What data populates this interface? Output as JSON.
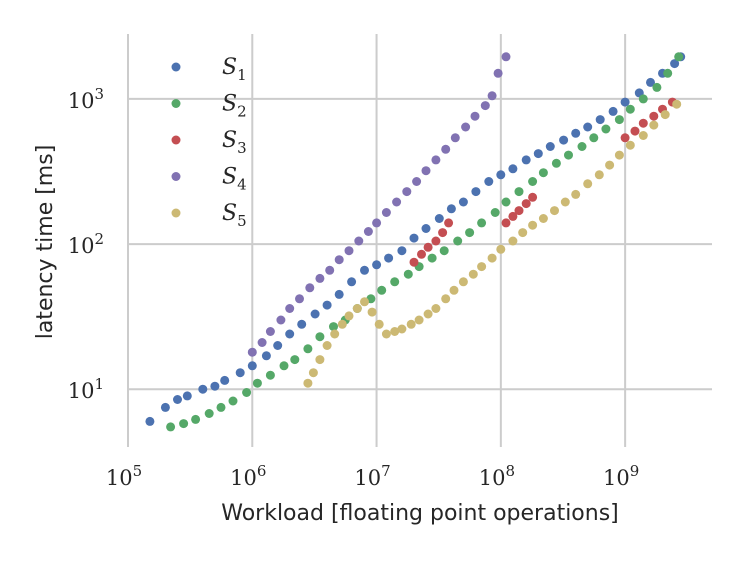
{
  "chart_data": {
    "type": "scatter",
    "title": "",
    "xlabel": "Workload [floating point operations]",
    "ylabel": "latency time [ms]",
    "xscale": "log",
    "yscale": "log",
    "xlim": [
      100000,
      5000000000
    ],
    "ylim": [
      4,
      2800
    ],
    "grid": true,
    "legend_position": "top-left",
    "x_ticks": [
      {
        "base": "10",
        "exp": "5",
        "value": 100000
      },
      {
        "base": "10",
        "exp": "6",
        "value": 1000000
      },
      {
        "base": "10",
        "exp": "7",
        "value": 10000000
      },
      {
        "base": "10",
        "exp": "8",
        "value": 100000000
      },
      {
        "base": "10",
        "exp": "9",
        "value": 1000000000
      }
    ],
    "y_ticks": [
      {
        "base": "10",
        "exp": "1",
        "value": 10
      },
      {
        "base": "10",
        "exp": "2",
        "value": 100
      },
      {
        "base": "10",
        "exp": "3",
        "value": 1000
      }
    ],
    "series": [
      {
        "name": "S1",
        "label_main": "S",
        "label_sub": "1",
        "color": "#4c72b0",
        "x": [
          150000,
          200000,
          250000,
          300000,
          400000,
          500000,
          600000,
          800000,
          1000000,
          1300000,
          1600000,
          2000000,
          2500000,
          3200000,
          4000000,
          5000000,
          6300000,
          8000000,
          10000000,
          12500000,
          16000000,
          20000000,
          25000000,
          32000000,
          40000000,
          50000000,
          63000000,
          80000000,
          100000000,
          125000000,
          160000000,
          200000000,
          250000000,
          320000000,
          400000000,
          500000000,
          630000000,
          800000000,
          1000000000,
          1300000000,
          1600000000,
          2000000000,
          2500000000,
          2800000000
        ],
        "y": [
          6,
          7.5,
          8.5,
          9,
          10,
          10.5,
          11.5,
          13,
          14.5,
          17,
          20,
          24,
          28,
          33,
          38,
          45,
          55,
          66,
          72,
          80,
          90,
          110,
          128,
          150,
          175,
          195,
          230,
          270,
          300,
          330,
          380,
          420,
          470,
          520,
          580,
          640,
          720,
          820,
          950,
          1100,
          1300,
          1500,
          1750,
          1950
        ]
      },
      {
        "name": "S2",
        "label_main": "S",
        "label_sub": "2",
        "color": "#55a868",
        "x": [
          220000,
          280000,
          350000,
          450000,
          560000,
          700000,
          900000,
          1100000,
          1400000,
          1800000,
          2200000,
          2800000,
          3500000,
          4500000,
          5600000,
          7000000,
          9000000,
          11000000,
          14000000,
          18000000,
          22000000,
          28000000,
          35000000,
          45000000,
          56000000,
          70000000,
          90000000,
          110000000,
          140000000,
          180000000,
          220000000,
          280000000,
          350000000,
          450000000,
          560000000,
          700000000,
          900000000,
          1100000000,
          1400000000,
          1800000000,
          2200000000,
          2700000000
        ],
        "y": [
          5.5,
          5.8,
          6.2,
          6.8,
          7.5,
          8.3,
          9.5,
          11,
          12.5,
          14.5,
          16,
          19,
          23,
          27,
          30,
          36,
          42,
          48,
          55,
          62,
          70,
          80,
          90,
          105,
          120,
          140,
          165,
          195,
          230,
          270,
          310,
          360,
          410,
          470,
          540,
          620,
          720,
          850,
          1000,
          1200,
          1500,
          1950
        ]
      },
      {
        "name": "S3",
        "label_main": "S",
        "label_sub": "3",
        "color": "#c44e52",
        "x": [
          20000000,
          23000000,
          26000000,
          30000000,
          34000000,
          38000000,
          110000000,
          125000000,
          140000000,
          160000000,
          180000000,
          1000000000,
          1200000000,
          1400000000,
          1700000000,
          2000000000,
          2400000000
        ],
        "y": [
          75,
          85,
          95,
          105,
          120,
          140,
          140,
          155,
          170,
          190,
          210,
          540,
          600,
          680,
          760,
          850,
          950
        ]
      },
      {
        "name": "S4",
        "label_main": "S",
        "label_sub": "4",
        "color": "#8172b2",
        "x": [
          1000000,
          1200000,
          1400000,
          1700000,
          2000000,
          2400000,
          2900000,
          3500000,
          4200000,
          5000000,
          6000000,
          7200000,
          8600000,
          10000000,
          12000000,
          14500000,
          17500000,
          21000000,
          25000000,
          30000000,
          36000000,
          43000000,
          52000000,
          62000000,
          75000000,
          85000000,
          95000000,
          110000000
        ],
        "y": [
          18,
          21,
          25,
          30,
          36,
          42,
          50,
          58,
          66,
          78,
          90,
          105,
          122,
          140,
          165,
          195,
          230,
          270,
          320,
          380,
          450,
          540,
          640,
          760,
          900,
          1050,
          1500,
          1950
        ]
      },
      {
        "name": "S5",
        "label_main": "S",
        "label_sub": "5",
        "color": "#ccb974",
        "x": [
          2800000,
          3100000,
          3500000,
          4000000,
          4600000,
          5300000,
          6000000,
          7000000,
          8000000,
          9200000,
          10500000,
          12000000,
          14000000,
          16000000,
          19000000,
          22000000,
          26000000,
          30000000,
          36000000,
          42000000,
          50000000,
          60000000,
          70000000,
          85000000,
          100000000,
          125000000,
          150000000,
          180000000,
          220000000,
          270000000,
          330000000,
          400000000,
          500000000,
          620000000,
          750000000,
          900000000,
          1100000000,
          1400000000,
          1700000000,
          2100000000,
          2600000000
        ],
        "y": [
          11,
          13,
          16,
          20,
          24,
          28,
          32,
          36,
          40,
          34,
          28,
          24,
          25,
          26,
          28,
          30,
          33,
          36,
          42,
          48,
          55,
          62,
          70,
          80,
          92,
          105,
          120,
          135,
          150,
          170,
          195,
          220,
          260,
          300,
          350,
          410,
          480,
          560,
          660,
          780,
          920
        ]
      }
    ]
  }
}
